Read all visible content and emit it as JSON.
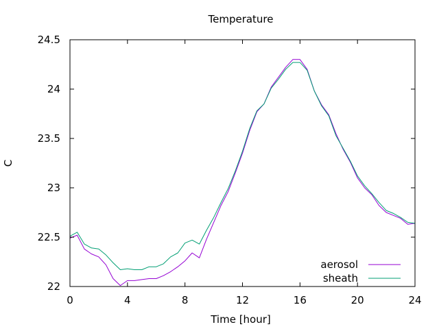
{
  "chart_data": {
    "type": "line",
    "title": "Temperature",
    "xlabel": "Time [hour]",
    "ylabel": "C",
    "xlim": [
      0,
      24
    ],
    "ylim": [
      22,
      24.5
    ],
    "x_ticks": [
      0,
      4,
      8,
      12,
      16,
      20,
      24
    ],
    "x_tick_labels": [
      "0",
      "4",
      "8",
      "12",
      "16",
      "20",
      "24"
    ],
    "y_ticks": [
      22,
      22.5,
      23,
      23.5,
      24,
      24.5
    ],
    "y_tick_labels": [
      "22",
      "22.5",
      "23",
      "23.5",
      "24",
      "24.5"
    ],
    "grid": false,
    "legend_position": "bottom-right",
    "series": [
      {
        "name": "aerosol",
        "color": "#9400d3",
        "x": [
          0,
          0.5,
          1,
          1.5,
          2,
          2.5,
          3,
          3.5,
          4,
          4.5,
          5,
          5.5,
          6,
          6.5,
          7,
          7.5,
          8,
          8.5,
          9,
          9.5,
          10,
          10.5,
          11,
          11.5,
          12,
          12.5,
          13,
          13.5,
          14,
          14.5,
          15,
          15.5,
          16,
          16.5,
          17,
          17.5,
          18,
          18.5,
          19,
          19.5,
          20,
          20.5,
          21,
          21.5,
          22,
          22.5,
          23,
          23.5,
          24
        ],
        "values": [
          22.49,
          22.52,
          22.38,
          22.33,
          22.3,
          22.22,
          22.08,
          22.01,
          22.06,
          22.06,
          22.07,
          22.08,
          22.08,
          22.11,
          22.15,
          22.2,
          22.26,
          22.34,
          22.29,
          22.48,
          22.65,
          22.82,
          22.96,
          23.15,
          23.35,
          23.58,
          23.77,
          23.85,
          24.02,
          24.12,
          24.22,
          24.3,
          24.3,
          24.2,
          23.98,
          23.84,
          23.74,
          23.55,
          23.39,
          23.26,
          23.1,
          23.0,
          22.93,
          22.82,
          22.75,
          22.72,
          22.69,
          22.63,
          22.64
        ]
      },
      {
        "name": "sheath",
        "color": "#009e73",
        "x": [
          0,
          0.5,
          1,
          1.5,
          2,
          2.5,
          3,
          3.5,
          4,
          4.5,
          5,
          5.5,
          6,
          6.5,
          7,
          7.5,
          8,
          8.5,
          9,
          9.5,
          10,
          10.5,
          11,
          11.5,
          12,
          12.5,
          13,
          13.5,
          14,
          14.5,
          15,
          15.5,
          16,
          16.5,
          17,
          17.5,
          18,
          18.5,
          19,
          19.5,
          20,
          20.5,
          21,
          21.5,
          22,
          22.5,
          23,
          23.5,
          24
        ],
        "values": [
          22.51,
          22.55,
          22.43,
          22.39,
          22.38,
          22.32,
          22.24,
          22.17,
          22.18,
          22.17,
          22.17,
          22.2,
          22.2,
          22.23,
          22.3,
          22.34,
          22.44,
          22.47,
          22.43,
          22.57,
          22.7,
          22.85,
          22.99,
          23.17,
          23.37,
          23.6,
          23.78,
          23.85,
          24.01,
          24.1,
          24.2,
          24.27,
          24.27,
          24.19,
          23.98,
          23.83,
          23.73,
          23.53,
          23.4,
          23.27,
          23.12,
          23.02,
          22.94,
          22.85,
          22.77,
          22.74,
          22.7,
          22.65,
          22.64
        ]
      }
    ]
  }
}
